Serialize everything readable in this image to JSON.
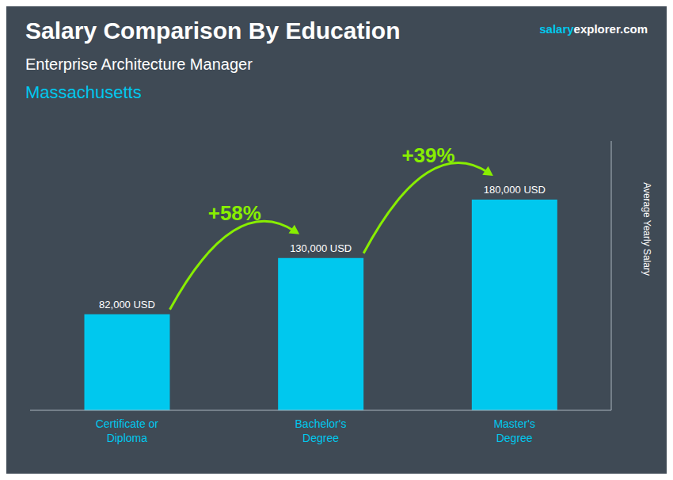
{
  "chart_data": {
    "type": "bar",
    "title": "Salary Comparison By Education",
    "subtitle": "Enterprise Architecture Manager",
    "location": "Massachusetts",
    "brand": [
      "salary",
      "explorer.com"
    ],
    "y_label": "Average Yearly Salary",
    "categories": [
      "Certificate or\nDiploma",
      "Bachelor's\nDegree",
      "Master's\nDegree"
    ],
    "values": [
      82000,
      130000,
      180000
    ],
    "value_labels": [
      "82,000 USD",
      "130,000 USD",
      "180,000 USD"
    ],
    "data_labels": true,
    "color": "#00c8ee",
    "annotations": [
      "+58%",
      "+39%"
    ],
    "ylim": [
      0,
      230000
    ],
    "tick_labels": "x",
    "grid": false
  }
}
